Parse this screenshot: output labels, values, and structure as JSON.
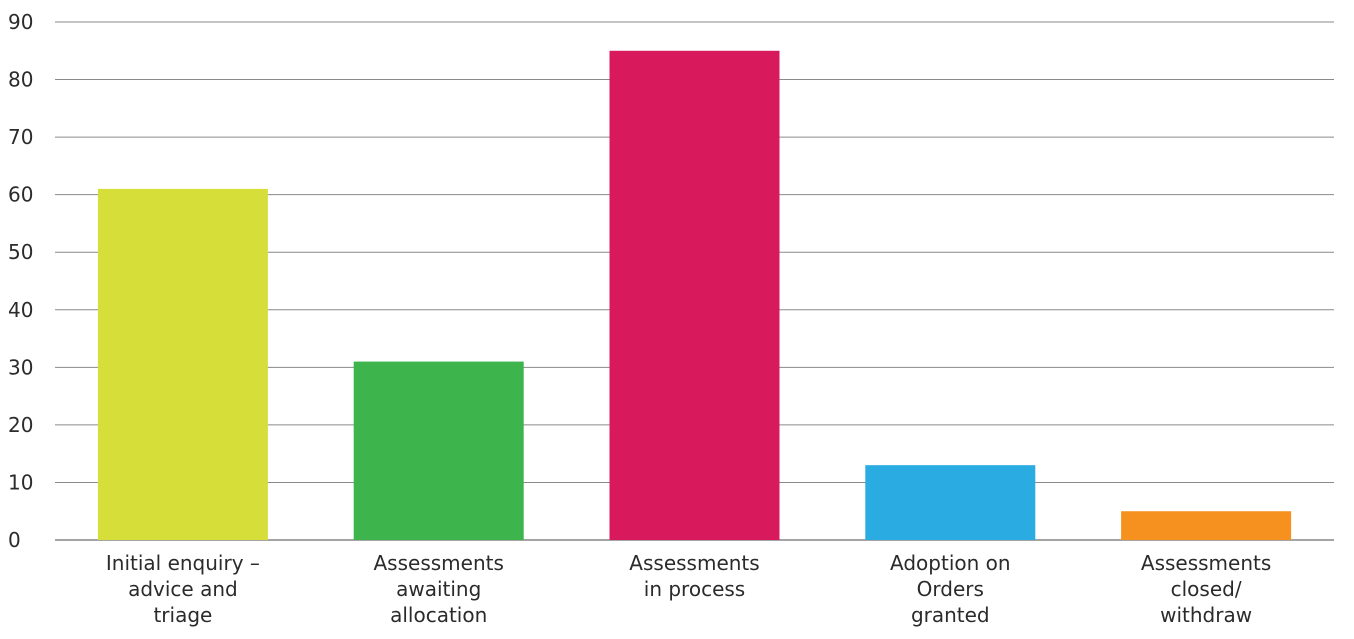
{
  "chart_data": {
    "type": "bar",
    "categories": [
      "Initial enquiry – advice and triage",
      "Assessments awaiting allocation",
      "Assessments in process",
      "Adoption on Orders granted",
      "Assessments closed/ withdraw"
    ],
    "category_lines": [
      [
        "Initial enquiry –",
        "advice and",
        "triage"
      ],
      [
        "Assessments",
        "awaiting",
        "allocation"
      ],
      [
        "Assessments",
        "in process"
      ],
      [
        "Adoption on",
        "Orders",
        "granted"
      ],
      [
        "Assessments",
        "closed/",
        "withdraw"
      ]
    ],
    "values": [
      61,
      31,
      85,
      13,
      5
    ],
    "colors": [
      "#d6df39",
      "#3db54c",
      "#d8195b",
      "#2aabe2",
      "#f6911f"
    ],
    "ylim": [
      0,
      90
    ],
    "yticks": [
      0,
      10,
      20,
      30,
      40,
      50,
      60,
      70,
      80,
      90
    ],
    "grid": true,
    "title": "",
    "xlabel": "",
    "ylabel": ""
  }
}
